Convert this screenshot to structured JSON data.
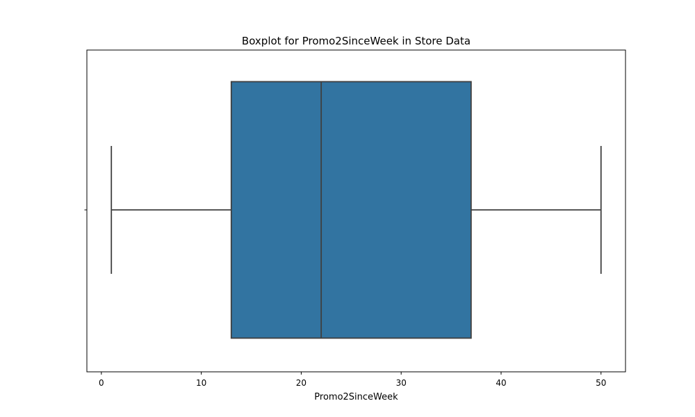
{
  "chart_data": {
    "type": "boxplot",
    "title": "Boxplot for Promo2SinceWeek in Store Data",
    "xlabel": "Promo2SinceWeek",
    "ylabel": "",
    "xlim": [
      -1.45,
      52.45
    ],
    "x_ticks": [
      0,
      10,
      20,
      30,
      40,
      50
    ],
    "orientation": "horizontal",
    "grid": false,
    "boxes": [
      {
        "min": 1,
        "q1": 13,
        "median": 22,
        "q3": 37,
        "max": 50
      }
    ],
    "colors": {
      "box_fill": "#3274a1",
      "line": "#3f3f3f",
      "axes": "#000000"
    }
  }
}
